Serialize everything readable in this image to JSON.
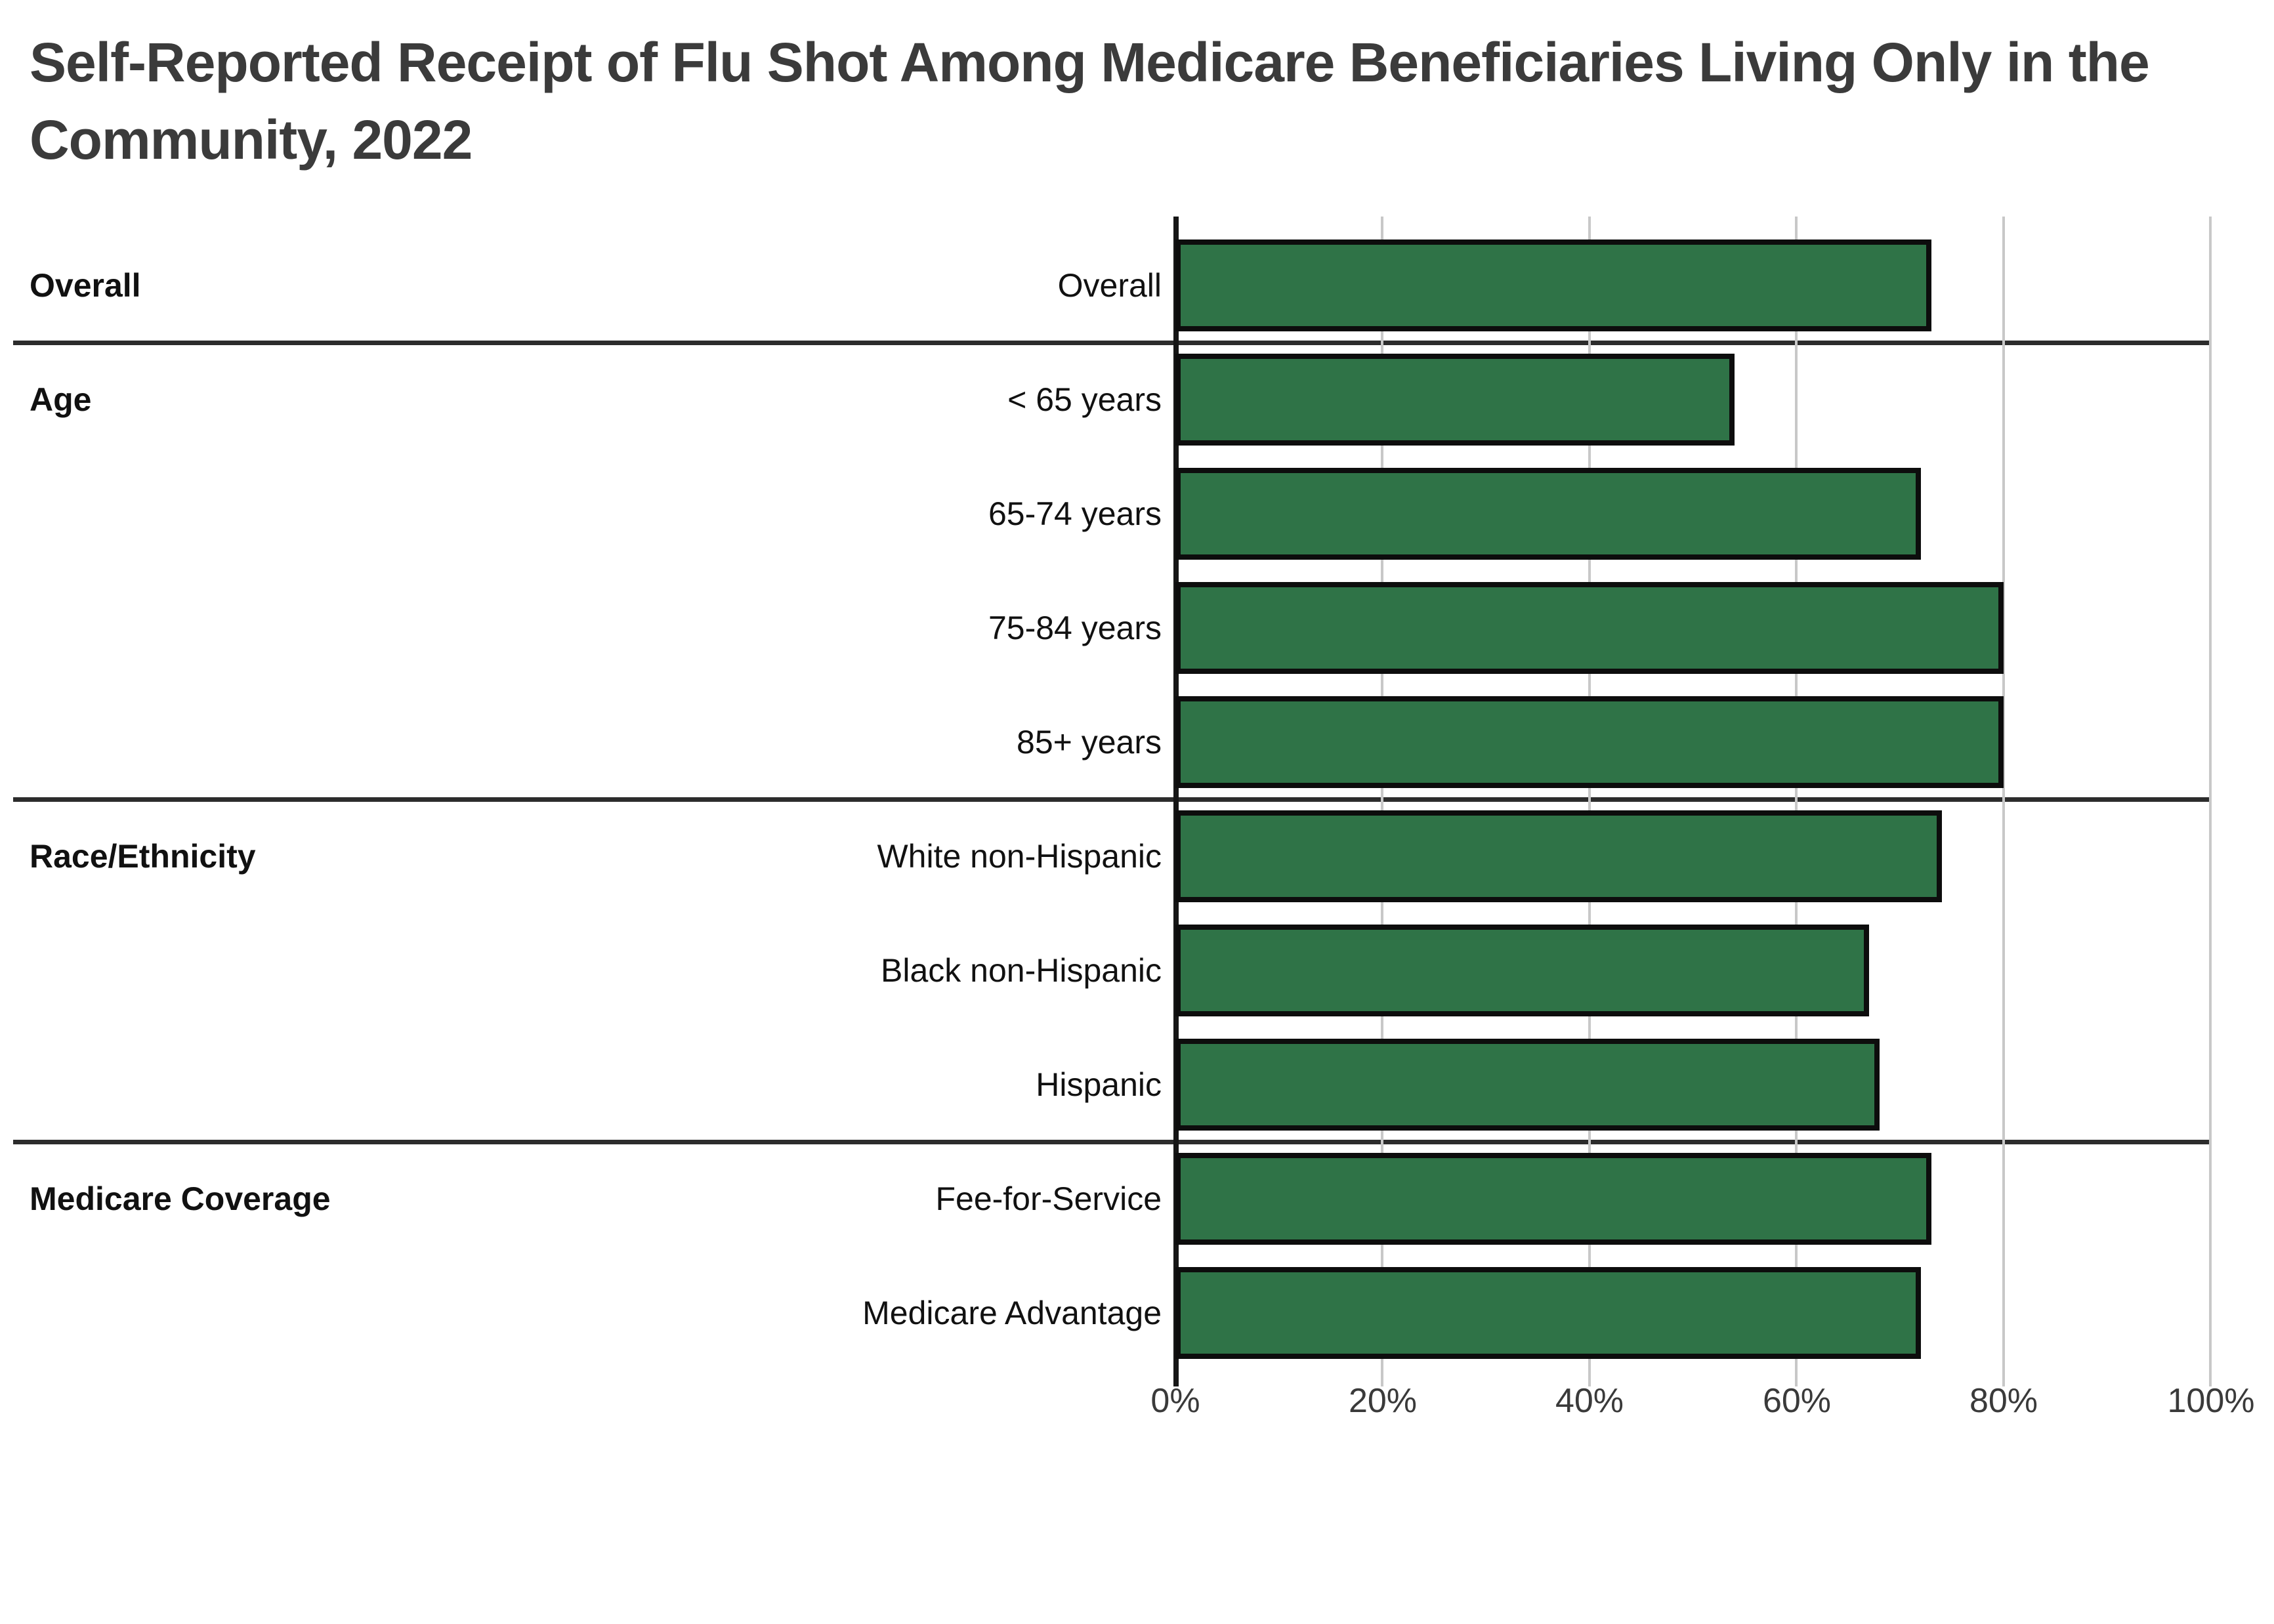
{
  "page": {
    "background": "#ffffff"
  },
  "title": {
    "text": "Self-Reported Receipt of Flu Shot Among Medicare Beneficiaries Living Only in the Community, 2022",
    "color": "#3b3b3b"
  },
  "chart_data": {
    "type": "bar",
    "orientation": "horizontal",
    "title": "Self-Reported Receipt of Flu Shot Among Medicare Beneficiaries Living Only in the Community, 2022",
    "unit": "percent",
    "x_axis": {
      "min": 0,
      "max": 100,
      "tick_labels": [
        "0%",
        "20%",
        "40%",
        "60%",
        "80%",
        "100%"
      ],
      "grid": true
    },
    "legend": "none",
    "bar_color": "#2f7347",
    "bar_border_color": "#0d0d0d",
    "groups": [
      {
        "label": "Overall",
        "rows": [
          {
            "label": "Overall",
            "value": 73
          }
        ]
      },
      {
        "label": "Age",
        "rows": [
          {
            "label": "< 65 years",
            "value": 54
          },
          {
            "label": "65-74 years",
            "value": 72
          },
          {
            "label": "75-84 years",
            "value": 80
          },
          {
            "label": "85+ years",
            "value": 80
          }
        ]
      },
      {
        "label": "Race/Ethnicity",
        "rows": [
          {
            "label": "White non-Hispanic",
            "value": 74
          },
          {
            "label": "Black non-Hispanic",
            "value": 67
          },
          {
            "label": "Hispanic",
            "value": 68
          }
        ]
      },
      {
        "label": "Medicare Coverage",
        "rows": [
          {
            "label": "Fee-for-Service",
            "value": 73
          },
          {
            "label": "Medicare Advantage",
            "value": 72
          }
        ]
      }
    ]
  }
}
